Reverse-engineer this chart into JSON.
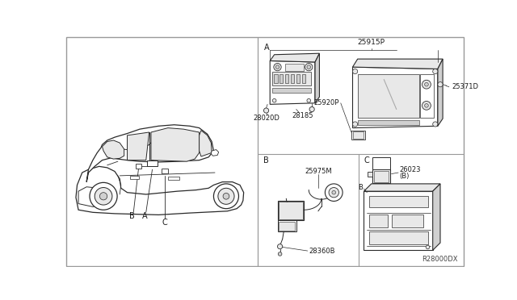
{
  "bg_color": "#ffffff",
  "panel_bg": "#f5f5f2",
  "line_color": "#2a2a2a",
  "text_color": "#1a1a1a",
  "gray_fill": "#e8e8e8",
  "mid_gray": "#d0d0d0",
  "dark_gray": "#b0b0b0",
  "border_color": "#999999",
  "figsize": [
    6.4,
    3.72
  ],
  "dpi": 100,
  "labels": {
    "A": "A",
    "B": "B",
    "C": "C",
    "28020D": "28020D",
    "28185": "28185",
    "25915P": "25915P",
    "25920P": "25920P",
    "25371D": "25371D",
    "25975M": "25975M",
    "28360B": "28360B",
    "26023": "26023",
    "B_paren": "(B)",
    "R28000DX": "R28000DX"
  }
}
